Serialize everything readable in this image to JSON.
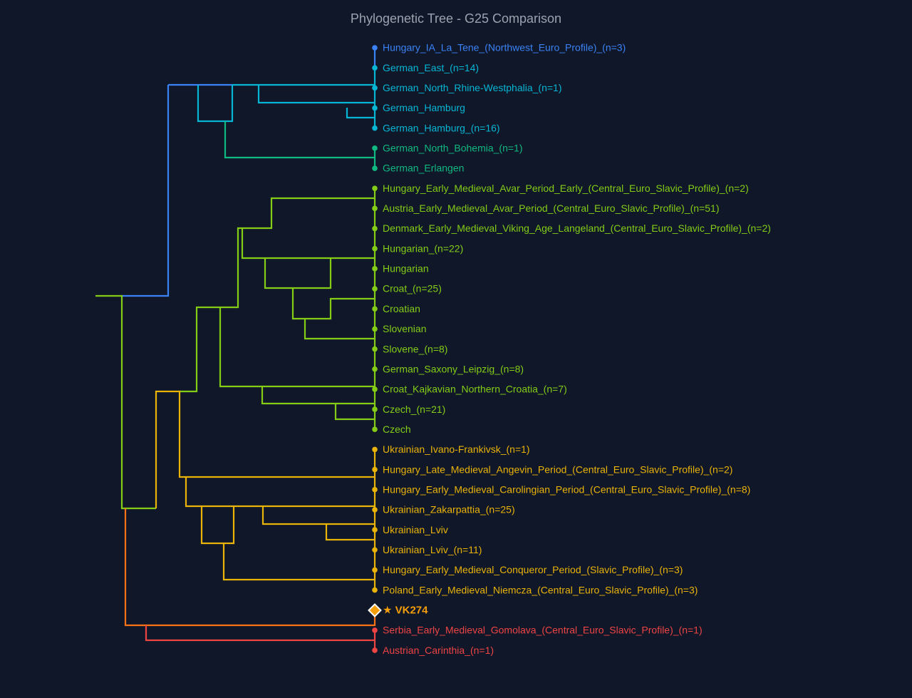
{
  "title": "Phylogenetic Tree - G25 Comparison",
  "leaves": [
    {
      "label": "Hungary_IA_La_Tene_(Northwest_Euro_Profile)_(n=3)",
      "color": "#3b82f6"
    },
    {
      "label": "German_East_(n=14)",
      "color": "#06b6d4"
    },
    {
      "label": "German_North_Rhine-Westphalia_(n=1)",
      "color": "#06b6d4"
    },
    {
      "label": "German_Hamburg",
      "color": "#06b6d4"
    },
    {
      "label": "German_Hamburg_(n=16)",
      "color": "#06b6d4"
    },
    {
      "label": "German_North_Bohemia_(n=1)",
      "color": "#10b981"
    },
    {
      "label": "German_Erlangen",
      "color": "#10b981"
    },
    {
      "label": "Hungary_Early_Medieval_Avar_Period_Early_(Central_Euro_Slavic_Profile)_(n=2)",
      "color": "#84cc16"
    },
    {
      "label": "Austria_Early_Medieval_Avar_Period_(Central_Euro_Slavic_Profile)_(n=51)",
      "color": "#84cc16"
    },
    {
      "label": "Denmark_Early_Medieval_Viking_Age_Langeland_(Central_Euro_Slavic_Profile)_(n=2)",
      "color": "#84cc16"
    },
    {
      "label": "Hungarian_(n=22)",
      "color": "#84cc16"
    },
    {
      "label": "Hungarian",
      "color": "#84cc16"
    },
    {
      "label": "Croat_(n=25)",
      "color": "#84cc16"
    },
    {
      "label": "Croatian",
      "color": "#84cc16"
    },
    {
      "label": "Slovenian",
      "color": "#84cc16"
    },
    {
      "label": "Slovene_(n=8)",
      "color": "#84cc16"
    },
    {
      "label": "German_Saxony_Leipzig_(n=8)",
      "color": "#84cc16"
    },
    {
      "label": "Croat_Kajkavian_Northern_Croatia_(n=7)",
      "color": "#84cc16"
    },
    {
      "label": "Czech_(n=21)",
      "color": "#84cc16"
    },
    {
      "label": "Czech",
      "color": "#84cc16"
    },
    {
      "label": "Ukrainian_Ivano-Frankivsk_(n=1)",
      "color": "#eab308"
    },
    {
      "label": "Hungary_Late_Medieval_Angevin_Period_(Central_Euro_Slavic_Profile)_(n=2)",
      "color": "#eab308"
    },
    {
      "label": "Hungary_Early_Medieval_Carolingian_Period_(Central_Euro_Slavic_Profile)_(n=8)",
      "color": "#eab308"
    },
    {
      "label": "Ukrainian_Zakarpattia_(n=25)",
      "color": "#eab308"
    },
    {
      "label": "Ukrainian_Lviv",
      "color": "#eab308"
    },
    {
      "label": "Ukrainian_Lviv_(n=11)",
      "color": "#eab308"
    },
    {
      "label": "Hungary_Early_Medieval_Conqueror_Period_(Slavic_Profile)_(n=3)",
      "color": "#eab308"
    },
    {
      "label": "Poland_Early_Medieval_Niemcza_(Central_Euro_Slavic_Profile)_(n=3)",
      "color": "#eab308"
    },
    {
      "label": "★ VK274",
      "color": "#f59e0b"
    },
    {
      "label": "Serbia_Early_Medieval_Gomolava_(Central_Euro_Slavic_Profile)_(n=1)",
      "color": "#ef4444"
    },
    {
      "label": "Austrian_Carinthia_(n=1)",
      "color": "#ef4444"
    }
  ]
}
